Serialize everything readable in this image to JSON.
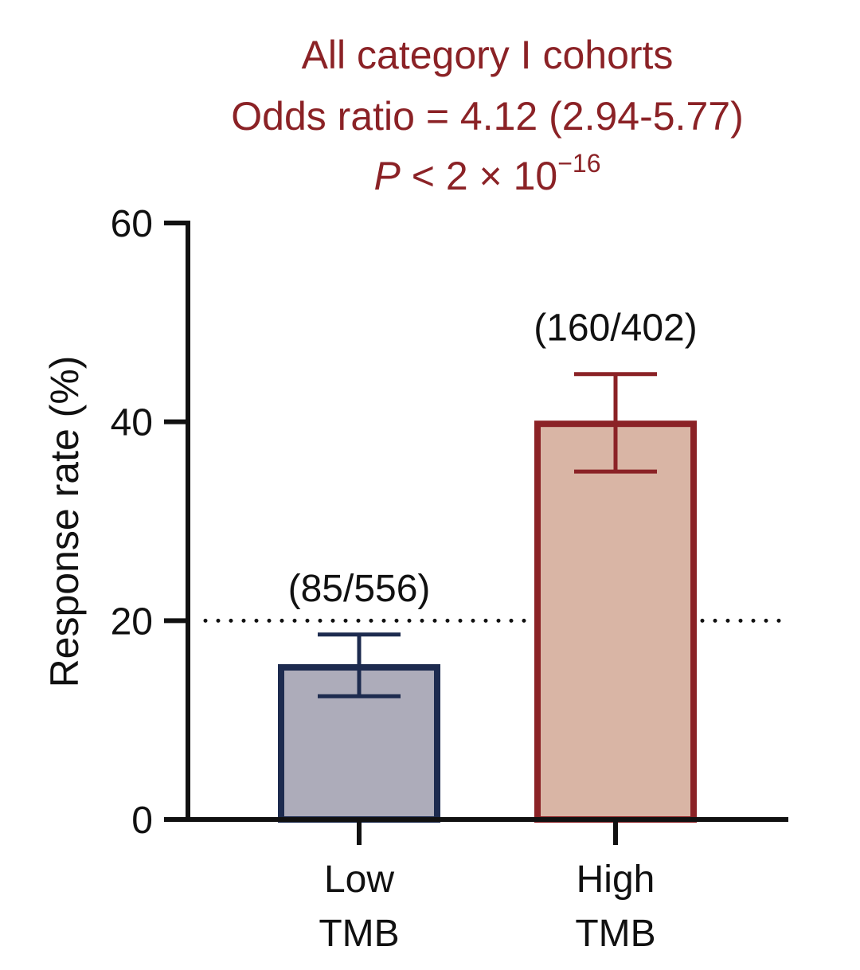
{
  "chart_data": {
    "type": "bar",
    "title": {
      "line1": "All category I cohorts",
      "line2": "Odds ratio = 4.12 (2.94-5.77)",
      "line3_p": "P",
      "line3_rest": " < 2 × 10",
      "line3_exp": "−16"
    },
    "categories": [
      {
        "line1": "Low",
        "line2": "TMB"
      },
      {
        "line1": "High",
        "line2": "TMB"
      }
    ],
    "values": [
      15.3,
      39.8
    ],
    "error_bars": [
      {
        "low": 12.4,
        "high": 18.6
      },
      {
        "low": 35.0,
        "high": 44.8
      }
    ],
    "count_labels": [
      "(85/556)",
      "(160/402)"
    ],
    "bar_fill_colors": [
      "#adacba",
      "#d9b5a5"
    ],
    "bar_edge_colors": [
      "#1d2b4f",
      "#8b2226"
    ],
    "title_color": "#8b2226",
    "reference_line": 20,
    "ylabel": "Response rate (%)",
    "xlabel": "",
    "ylim": [
      0,
      60
    ],
    "yticks": [
      0,
      20,
      40,
      60
    ],
    "ytick_labels": [
      "0",
      "20",
      "40",
      "60"
    ],
    "grid": false,
    "legend": "none"
  }
}
